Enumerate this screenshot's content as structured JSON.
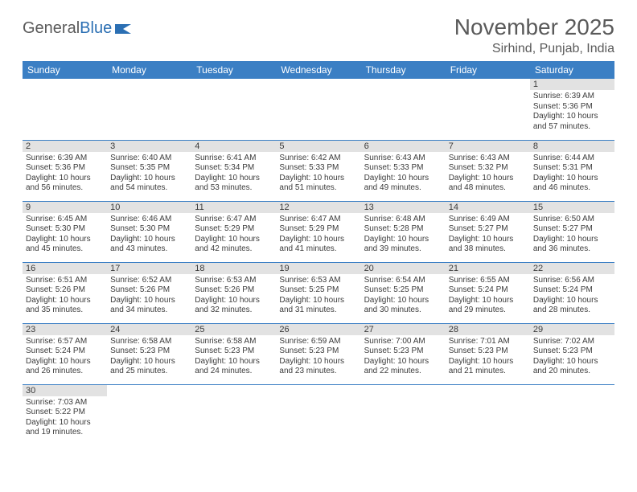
{
  "logo": {
    "text1": "General",
    "text2": "Blue"
  },
  "title": "November 2025",
  "subtitle": "Sirhind, Punjab, India",
  "colors": {
    "header_bg": "#3b7fc4",
    "header_text": "#ffffff",
    "daynum_bg": "#e2e2e2",
    "cell_border": "#3b7fc4",
    "body_text": "#3b3b3b",
    "page_bg": "#ffffff",
    "logo_gray": "#5a5a5a",
    "logo_blue": "#2b6fb3"
  },
  "fontsize": {
    "title": 28,
    "subtitle": 16,
    "weekday": 12,
    "daynum": 11,
    "cell": 10
  },
  "weekdays": [
    "Sunday",
    "Monday",
    "Tuesday",
    "Wednesday",
    "Thursday",
    "Friday",
    "Saturday"
  ],
  "weeks": [
    [
      null,
      null,
      null,
      null,
      null,
      null,
      {
        "n": "1",
        "sr": "Sunrise: 6:39 AM",
        "ss": "Sunset: 5:36 PM",
        "d1": "Daylight: 10 hours",
        "d2": "and 57 minutes."
      }
    ],
    [
      {
        "n": "2",
        "sr": "Sunrise: 6:39 AM",
        "ss": "Sunset: 5:36 PM",
        "d1": "Daylight: 10 hours",
        "d2": "and 56 minutes."
      },
      {
        "n": "3",
        "sr": "Sunrise: 6:40 AM",
        "ss": "Sunset: 5:35 PM",
        "d1": "Daylight: 10 hours",
        "d2": "and 54 minutes."
      },
      {
        "n": "4",
        "sr": "Sunrise: 6:41 AM",
        "ss": "Sunset: 5:34 PM",
        "d1": "Daylight: 10 hours",
        "d2": "and 53 minutes."
      },
      {
        "n": "5",
        "sr": "Sunrise: 6:42 AM",
        "ss": "Sunset: 5:33 PM",
        "d1": "Daylight: 10 hours",
        "d2": "and 51 minutes."
      },
      {
        "n": "6",
        "sr": "Sunrise: 6:43 AM",
        "ss": "Sunset: 5:33 PM",
        "d1": "Daylight: 10 hours",
        "d2": "and 49 minutes."
      },
      {
        "n": "7",
        "sr": "Sunrise: 6:43 AM",
        "ss": "Sunset: 5:32 PM",
        "d1": "Daylight: 10 hours",
        "d2": "and 48 minutes."
      },
      {
        "n": "8",
        "sr": "Sunrise: 6:44 AM",
        "ss": "Sunset: 5:31 PM",
        "d1": "Daylight: 10 hours",
        "d2": "and 46 minutes."
      }
    ],
    [
      {
        "n": "9",
        "sr": "Sunrise: 6:45 AM",
        "ss": "Sunset: 5:30 PM",
        "d1": "Daylight: 10 hours",
        "d2": "and 45 minutes."
      },
      {
        "n": "10",
        "sr": "Sunrise: 6:46 AM",
        "ss": "Sunset: 5:30 PM",
        "d1": "Daylight: 10 hours",
        "d2": "and 43 minutes."
      },
      {
        "n": "11",
        "sr": "Sunrise: 6:47 AM",
        "ss": "Sunset: 5:29 PM",
        "d1": "Daylight: 10 hours",
        "d2": "and 42 minutes."
      },
      {
        "n": "12",
        "sr": "Sunrise: 6:47 AM",
        "ss": "Sunset: 5:29 PM",
        "d1": "Daylight: 10 hours",
        "d2": "and 41 minutes."
      },
      {
        "n": "13",
        "sr": "Sunrise: 6:48 AM",
        "ss": "Sunset: 5:28 PM",
        "d1": "Daylight: 10 hours",
        "d2": "and 39 minutes."
      },
      {
        "n": "14",
        "sr": "Sunrise: 6:49 AM",
        "ss": "Sunset: 5:27 PM",
        "d1": "Daylight: 10 hours",
        "d2": "and 38 minutes."
      },
      {
        "n": "15",
        "sr": "Sunrise: 6:50 AM",
        "ss": "Sunset: 5:27 PM",
        "d1": "Daylight: 10 hours",
        "d2": "and 36 minutes."
      }
    ],
    [
      {
        "n": "16",
        "sr": "Sunrise: 6:51 AM",
        "ss": "Sunset: 5:26 PM",
        "d1": "Daylight: 10 hours",
        "d2": "and 35 minutes."
      },
      {
        "n": "17",
        "sr": "Sunrise: 6:52 AM",
        "ss": "Sunset: 5:26 PM",
        "d1": "Daylight: 10 hours",
        "d2": "and 34 minutes."
      },
      {
        "n": "18",
        "sr": "Sunrise: 6:53 AM",
        "ss": "Sunset: 5:26 PM",
        "d1": "Daylight: 10 hours",
        "d2": "and 32 minutes."
      },
      {
        "n": "19",
        "sr": "Sunrise: 6:53 AM",
        "ss": "Sunset: 5:25 PM",
        "d1": "Daylight: 10 hours",
        "d2": "and 31 minutes."
      },
      {
        "n": "20",
        "sr": "Sunrise: 6:54 AM",
        "ss": "Sunset: 5:25 PM",
        "d1": "Daylight: 10 hours",
        "d2": "and 30 minutes."
      },
      {
        "n": "21",
        "sr": "Sunrise: 6:55 AM",
        "ss": "Sunset: 5:24 PM",
        "d1": "Daylight: 10 hours",
        "d2": "and 29 minutes."
      },
      {
        "n": "22",
        "sr": "Sunrise: 6:56 AM",
        "ss": "Sunset: 5:24 PM",
        "d1": "Daylight: 10 hours",
        "d2": "and 28 minutes."
      }
    ],
    [
      {
        "n": "23",
        "sr": "Sunrise: 6:57 AM",
        "ss": "Sunset: 5:24 PM",
        "d1": "Daylight: 10 hours",
        "d2": "and 26 minutes."
      },
      {
        "n": "24",
        "sr": "Sunrise: 6:58 AM",
        "ss": "Sunset: 5:23 PM",
        "d1": "Daylight: 10 hours",
        "d2": "and 25 minutes."
      },
      {
        "n": "25",
        "sr": "Sunrise: 6:58 AM",
        "ss": "Sunset: 5:23 PM",
        "d1": "Daylight: 10 hours",
        "d2": "and 24 minutes."
      },
      {
        "n": "26",
        "sr": "Sunrise: 6:59 AM",
        "ss": "Sunset: 5:23 PM",
        "d1": "Daylight: 10 hours",
        "d2": "and 23 minutes."
      },
      {
        "n": "27",
        "sr": "Sunrise: 7:00 AM",
        "ss": "Sunset: 5:23 PM",
        "d1": "Daylight: 10 hours",
        "d2": "and 22 minutes."
      },
      {
        "n": "28",
        "sr": "Sunrise: 7:01 AM",
        "ss": "Sunset: 5:23 PM",
        "d1": "Daylight: 10 hours",
        "d2": "and 21 minutes."
      },
      {
        "n": "29",
        "sr": "Sunrise: 7:02 AM",
        "ss": "Sunset: 5:23 PM",
        "d1": "Daylight: 10 hours",
        "d2": "and 20 minutes."
      }
    ],
    [
      {
        "n": "30",
        "sr": "Sunrise: 7:03 AM",
        "ss": "Sunset: 5:22 PM",
        "d1": "Daylight: 10 hours",
        "d2": "and 19 minutes."
      },
      null,
      null,
      null,
      null,
      null,
      null
    ]
  ]
}
